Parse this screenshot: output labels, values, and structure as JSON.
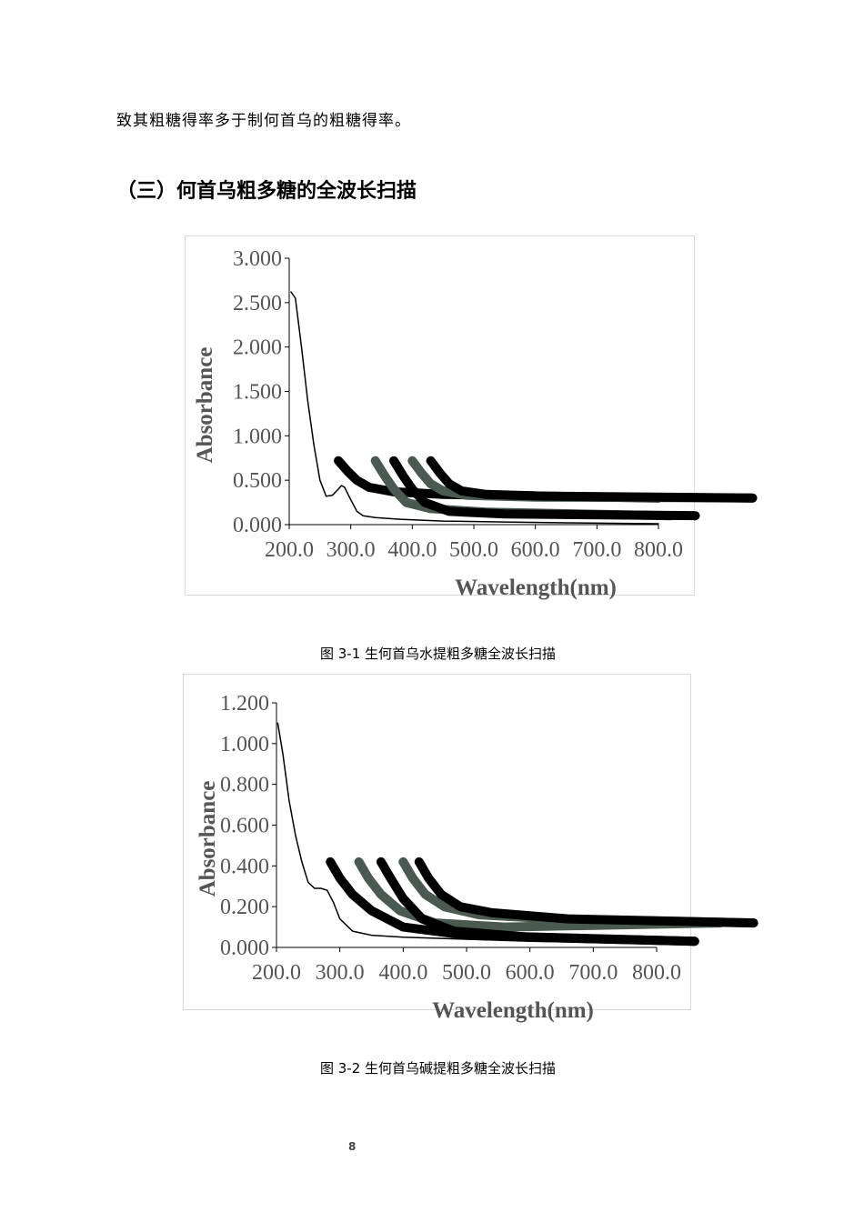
{
  "document": {
    "body_text": "致其粗糖得率多于制何首乌的粗糖得率。",
    "section_heading": "（三）何首乌粗多糖的全波长扫描",
    "captions": [
      "图 3-1  生何首乌水提粗多糖全波长扫描",
      "图 3-2  生何首乌碱提粗多糖全波长扫描"
    ],
    "page_number": "8"
  },
  "chart_data": [
    {
      "type": "line",
      "x_label": "Wavelength(nm)",
      "y_label": "Absorbance",
      "xlim": [
        200,
        800
      ],
      "ylim": [
        0,
        3
      ],
      "xticks": [
        {
          "value": 200,
          "label": "200.0"
        },
        {
          "value": 300,
          "label": "300.0"
        },
        {
          "value": 400,
          "label": "400.0"
        },
        {
          "value": 500,
          "label": "500.0"
        },
        {
          "value": 600,
          "label": "600.0"
        },
        {
          "value": 700,
          "label": "700.0"
        },
        {
          "value": 800,
          "label": "800.0"
        }
      ],
      "yticks": [
        {
          "value": 0,
          "label": "0.000"
        },
        {
          "value": 0.5,
          "label": "0.500"
        },
        {
          "value": 1,
          "label": "1.000"
        },
        {
          "value": 1.5,
          "label": "1.500"
        },
        {
          "value": 2,
          "label": "2.000"
        },
        {
          "value": 2.5,
          "label": "2.500"
        },
        {
          "value": 3,
          "label": "3.000"
        }
      ],
      "series": [
        {
          "color": "#000000",
          "line_width": 1.5,
          "x": [
            203,
            210,
            220,
            230,
            240,
            250,
            260,
            270,
            280,
            285,
            290,
            300,
            310,
            320,
            340,
            380,
            450,
            550,
            650,
            800
          ],
          "values": [
            2.62,
            2.55,
            2.0,
            1.4,
            0.9,
            0.5,
            0.32,
            0.33,
            0.4,
            0.44,
            0.42,
            0.28,
            0.15,
            0.1,
            0.08,
            0.06,
            0.04,
            0.03,
            0.02,
            0.01
          ]
        },
        {
          "color": "#000000",
          "line_width": 10,
          "x": [
            280,
            295,
            310,
            330,
            370,
            450,
            800
          ],
          "values": [
            0.72,
            0.6,
            0.5,
            0.42,
            0.37,
            0.34,
            0.3
          ]
        },
        {
          "color": "#4a5a50",
          "line_width": 10,
          "x": [
            340,
            355,
            370,
            390,
            430,
            520,
            820
          ],
          "values": [
            0.72,
            0.55,
            0.4,
            0.25,
            0.18,
            0.14,
            0.1
          ]
        },
        {
          "color": "#000000",
          "line_width": 10,
          "x": [
            370,
            385,
            400,
            420,
            460,
            550,
            860
          ],
          "values": [
            0.72,
            0.55,
            0.4,
            0.25,
            0.15,
            0.12,
            0.1
          ]
        },
        {
          "color": "#4a5a50",
          "line_width": 10,
          "x": [
            400,
            415,
            430,
            450,
            490,
            600,
            953
          ],
          "values": [
            0.72,
            0.58,
            0.46,
            0.38,
            0.33,
            0.31,
            0.3
          ]
        },
        {
          "color": "#000000",
          "line_width": 10,
          "x": [
            430,
            445,
            460,
            480,
            520,
            620,
            953
          ],
          "values": [
            0.72,
            0.58,
            0.46,
            0.38,
            0.34,
            0.32,
            0.3
          ]
        }
      ]
    },
    {
      "type": "line",
      "x_label": "Wavelength(nm)",
      "y_label": "Absorbance",
      "xlim": [
        200,
        800
      ],
      "ylim": [
        0,
        1.2
      ],
      "xticks": [
        {
          "value": 200,
          "label": "200.0"
        },
        {
          "value": 300,
          "label": "300.0"
        },
        {
          "value": 400,
          "label": "400.0"
        },
        {
          "value": 500,
          "label": "500.0"
        },
        {
          "value": 600,
          "label": "600.0"
        },
        {
          "value": 700,
          "label": "700.0"
        },
        {
          "value": 800,
          "label": "800.0"
        }
      ],
      "yticks": [
        {
          "value": 0,
          "label": "0.000"
        },
        {
          "value": 0.2,
          "label": "0.200"
        },
        {
          "value": 0.4,
          "label": "0.400"
        },
        {
          "value": 0.6,
          "label": "0.600"
        },
        {
          "value": 0.8,
          "label": "0.800"
        },
        {
          "value": 1,
          "label": "1.000"
        },
        {
          "value": 1.2,
          "label": "1.200"
        }
      ],
      "series": [
        {
          "color": "#000000",
          "line_width": 1.5,
          "x": [
            202,
            210,
            220,
            230,
            240,
            250,
            260,
            270,
            280,
            290,
            300,
            320,
            350,
            400,
            500,
            600,
            800
          ],
          "values": [
            1.1,
            0.95,
            0.72,
            0.55,
            0.42,
            0.32,
            0.29,
            0.29,
            0.28,
            0.22,
            0.14,
            0.08,
            0.06,
            0.05,
            0.04,
            0.03,
            0.02
          ]
        },
        {
          "color": "#000000",
          "line_width": 10,
          "x": [
            285,
            300,
            320,
            350,
            400,
            500,
            860
          ],
          "values": [
            0.42,
            0.34,
            0.26,
            0.18,
            0.1,
            0.06,
            0.03
          ]
        },
        {
          "color": "#4a5a50",
          "line_width": 10,
          "x": [
            330,
            345,
            365,
            395,
            450,
            560,
            900
          ],
          "values": [
            0.42,
            0.34,
            0.26,
            0.18,
            0.12,
            0.1,
            0.12
          ]
        },
        {
          "color": "#000000",
          "line_width": 10,
          "x": [
            365,
            380,
            400,
            430,
            480,
            600,
            860
          ],
          "values": [
            0.42,
            0.34,
            0.24,
            0.14,
            0.08,
            0.05,
            0.03
          ]
        },
        {
          "color": "#4a5a50",
          "line_width": 10,
          "x": [
            400,
            415,
            435,
            465,
            520,
            640,
            953
          ],
          "values": [
            0.42,
            0.34,
            0.26,
            0.2,
            0.16,
            0.14,
            0.12
          ]
        },
        {
          "color": "#000000",
          "line_width": 10,
          "x": [
            425,
            440,
            460,
            490,
            540,
            660,
            953
          ],
          "values": [
            0.42,
            0.34,
            0.26,
            0.2,
            0.17,
            0.14,
            0.12
          ]
        }
      ]
    }
  ]
}
